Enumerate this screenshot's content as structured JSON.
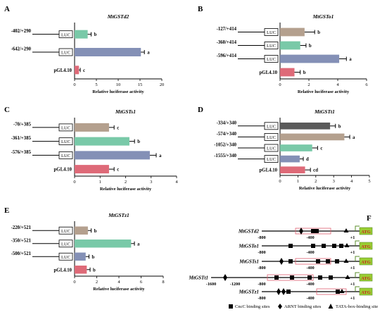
{
  "xlabel": "Relative luciferase activity",
  "box_label": "LUC",
  "chart_data": [
    {
      "panel": "A",
      "type": "bar",
      "orientation": "horizontal",
      "title": "MtGSTd2",
      "xlabel": "Relative luciferase activity",
      "xlim": [
        0,
        20
      ],
      "xticks": [
        0,
        5,
        10,
        15,
        20
      ],
      "categories": [
        "-402/+290",
        "-642/+290",
        "pGL4.10"
      ],
      "values": [
        3,
        15.2,
        1
      ],
      "errors": [
        0.8,
        0.8,
        0.3
      ],
      "letters": [
        "b",
        "a",
        "c"
      ],
      "colors": [
        "#79c9a8",
        "#8490b6",
        "#de6a78"
      ],
      "construct": [
        true,
        true,
        false
      ]
    },
    {
      "panel": "B",
      "type": "bar",
      "orientation": "horizontal",
      "title": "MtGSTo1",
      "xlabel": "Relative luciferase activity",
      "xlim": [
        0,
        6
      ],
      "xticks": [
        0,
        2,
        4,
        6
      ],
      "categories": [
        "-127/+414",
        "-360/+414",
        "-596/+414",
        "pGL4.10"
      ],
      "values": [
        1.7,
        1.4,
        4.1,
        1.0
      ],
      "errors": [
        0.7,
        0.4,
        0.5,
        0.4
      ],
      "letters": [
        "b",
        "b",
        "a",
        "b"
      ],
      "colors": [
        "#b4a08e",
        "#79c9a8",
        "#8490b6",
        "#de6a78"
      ],
      "construct": [
        true,
        true,
        true,
        false
      ]
    },
    {
      "panel": "C",
      "type": "bar",
      "orientation": "horizontal",
      "title": "MtGSTs1",
      "xlabel": "Relative luciferase activity",
      "xlim": [
        0,
        4
      ],
      "xticks": [
        0,
        1,
        2,
        3,
        4
      ],
      "categories": [
        "-70/+385",
        "-361/+385",
        "-576/+385",
        "pGL4.10"
      ],
      "values": [
        1.35,
        2.15,
        2.95,
        1.35
      ],
      "errors": [
        0.2,
        0.2,
        0.25,
        0.2
      ],
      "letters": [
        "c",
        "b",
        "a",
        "c"
      ],
      "colors": [
        "#b4a08e",
        "#79c9a8",
        "#8490b6",
        "#de6a78"
      ],
      "construct": [
        true,
        true,
        true,
        false
      ]
    },
    {
      "panel": "D",
      "type": "bar",
      "orientation": "horizontal",
      "title": "MtGSTt1",
      "xlabel": "Relative luciferase activity",
      "xlim": [
        0,
        5
      ],
      "xticks": [
        0,
        1,
        2,
        3,
        4,
        5
      ],
      "categories": [
        "-334/+340",
        "-574/+340",
        "-1052/+340",
        "-1555/+340",
        "pGL4.10"
      ],
      "values": [
        2.8,
        3.6,
        1.8,
        1.1,
        1.4
      ],
      "errors": [
        0.3,
        0.3,
        0.3,
        0.2,
        0.3
      ],
      "letters": [
        "b",
        "a",
        "c",
        "d",
        "cd"
      ],
      "colors": [
        "#5a5a5a",
        "#b4a08e",
        "#79c9a8",
        "#8490b6",
        "#de6a78"
      ],
      "construct": [
        true,
        true,
        true,
        true,
        false
      ]
    },
    {
      "panel": "E",
      "type": "bar",
      "orientation": "horizontal",
      "title": "MtGSTz1",
      "xlabel": "Relative luciferase activity",
      "xlim": [
        0,
        8
      ],
      "xticks": [
        0,
        2,
        4,
        6,
        8
      ],
      "categories": [
        "-220/+521",
        "-350/+521",
        "-500/+521",
        "pGL4.10"
      ],
      "values": [
        1.2,
        5.1,
        1.0,
        1.1
      ],
      "errors": [
        0.3,
        0.3,
        0.3,
        0.3
      ],
      "letters": [
        "b",
        "a",
        "b",
        "b"
      ],
      "colors": [
        "#b4a08e",
        "#79c9a8",
        "#8490b6",
        "#de6a78"
      ],
      "construct": [
        true,
        true,
        true,
        false
      ]
    }
  ],
  "panel_f": {
    "label": "F",
    "genes": [
      {
        "name": "MtGSTd2",
        "ticks": [
          "-800",
          "-400",
          "+1"
        ]
      },
      {
        "name": "MtGSTo1",
        "ticks": [
          "-800",
          "-400",
          "+1"
        ]
      },
      {
        "name": "MtGSTs1",
        "ticks": [
          "-800",
          "-400",
          "+1"
        ]
      },
      {
        "name": "MtGSTt1",
        "ticks": [
          "-1600",
          "-1200",
          "-800",
          "-400",
          "+1"
        ]
      },
      {
        "name": "MtGSTz1",
        "ticks": [
          "-800",
          "-400",
          "+1"
        ]
      }
    ],
    "atg": "ATG",
    "legend": [
      "CncC binding sites",
      "ARNT binding sites",
      "TATA-box-binding site"
    ]
  }
}
